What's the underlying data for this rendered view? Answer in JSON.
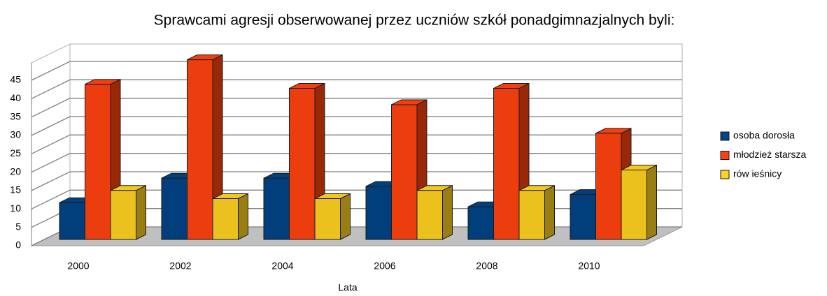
{
  "chart_data": {
    "type": "bar3d",
    "title": "Sprawcami agresji obserwowanej przez uczniów szkół ponadgimnazjalnych byli:",
    "xlabel": "Lata",
    "categories": [
      "2000",
      "2002",
      "2004",
      "2006",
      "2008",
      "2010"
    ],
    "series": [
      {
        "name": "osoba dorosła",
        "color": "#004586",
        "values": [
          9,
          15,
          15,
          13,
          8,
          11
        ]
      },
      {
        "name": "młodzież starsza",
        "color": "#ff420e",
        "values": [
          38,
          44,
          37,
          33,
          37,
          26
        ]
      },
      {
        "name": "rów ieśnicy",
        "color": "#ffd320",
        "values": [
          12,
          10,
          10,
          12,
          12,
          17
        ]
      }
    ],
    "ylim": [
      0,
      45
    ],
    "yticks": [
      0,
      5,
      10,
      15,
      20,
      25,
      30,
      35,
      40,
      45
    ],
    "grid": true
  }
}
